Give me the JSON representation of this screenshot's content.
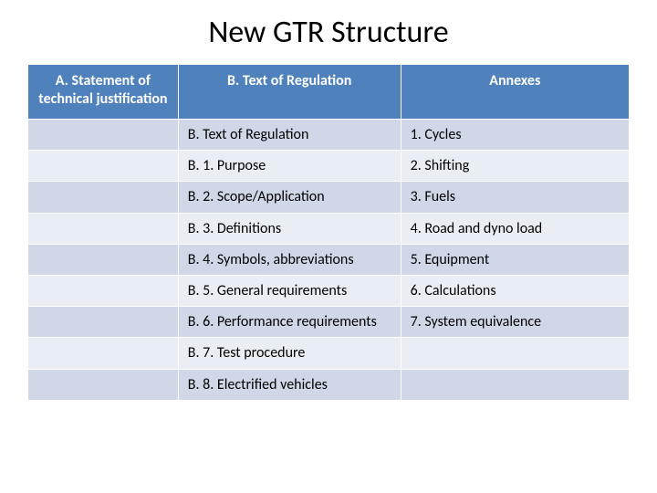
{
  "title": "New GTR Structure",
  "headers": [
    "A. Statement of technical justification",
    "B. Text of Regulation",
    "Annexes"
  ],
  "rows": [
    [
      "",
      "B. Text of Regulation",
      "1. Cycles"
    ],
    [
      "",
      "B. 1. Purpose",
      "2. Shifting"
    ],
    [
      "",
      "B. 2. Scope/Application",
      "3. Fuels"
    ],
    [
      "",
      "B. 3. Definitions",
      "4. Road and dyno load"
    ],
    [
      "",
      "B. 4. Symbols, abbreviations",
      "5. Equipment"
    ],
    [
      "",
      "B. 5. General requirements",
      "6. Calculations"
    ],
    [
      "",
      "B. 6. Performance requirements",
      "7. System equivalence"
    ],
    [
      "",
      "B. 7. Test procedure",
      ""
    ],
    [
      "",
      "B. 8. Electrified vehicles",
      ""
    ]
  ],
  "colors": {
    "header_bg": "#4f81bd",
    "header_text": "#ffffff",
    "row_odd": "#d0d8e8",
    "row_even": "#e9edf4",
    "text": "#000000",
    "background": "#ffffff"
  },
  "typography": {
    "title_fontsize": 34,
    "cell_fontsize": 16,
    "header_fontsize": 16,
    "font_family": "Calibri"
  },
  "table": {
    "type": "table",
    "col_widths_pct": [
      25,
      37,
      38
    ]
  }
}
